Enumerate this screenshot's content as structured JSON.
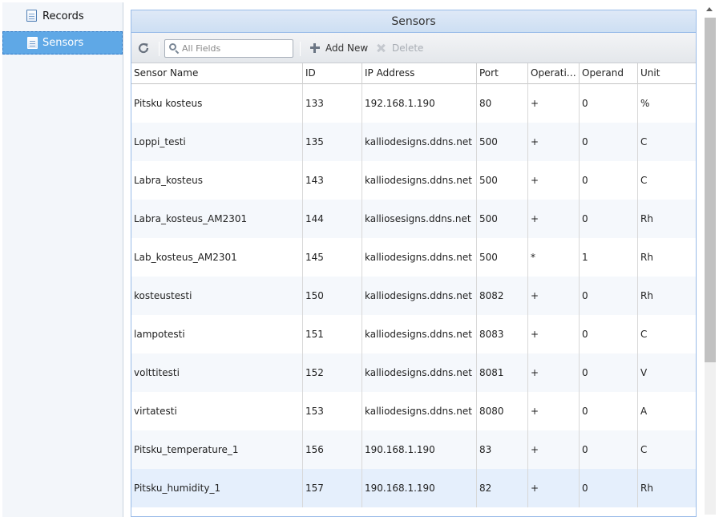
{
  "sidebar": {
    "items": [
      {
        "label": "Records",
        "icon": "document-icon",
        "selected": false
      },
      {
        "label": "Sensors",
        "icon": "document-icon",
        "selected": true
      }
    ]
  },
  "panel": {
    "title": "Sensors"
  },
  "toolbar": {
    "refresh_icon": "refresh-icon",
    "search_placeholder": "All Fields",
    "search_value": "",
    "add_label": "Add New",
    "delete_label": "Delete"
  },
  "grid": {
    "columns": [
      "Sensor Name",
      "ID",
      "IP Address",
      "Port",
      "Operati…",
      "Operand",
      "Unit"
    ],
    "rows": [
      {
        "name": "Pitsku kosteus",
        "id": "133",
        "ip": "192.168.1.190",
        "port": "80",
        "op": "+",
        "operand": "0",
        "unit": "%"
      },
      {
        "name": "Loppi_testi",
        "id": "135",
        "ip": "kalliodesigns.ddns.net",
        "port": "500",
        "op": "+",
        "operand": "0",
        "unit": "C"
      },
      {
        "name": "Labra_kosteus",
        "id": "143",
        "ip": "kalliodesigns.ddns.net",
        "port": "500",
        "op": "+",
        "operand": "0",
        "unit": "C"
      },
      {
        "name": "Labra_kosteus_AM2301",
        "id": "144",
        "ip": "kalliosesigns.ddns.net",
        "port": "500",
        "op": "+",
        "operand": "0",
        "unit": "Rh"
      },
      {
        "name": "Lab_kosteus_AM2301",
        "id": "145",
        "ip": "kalliodesigns.ddns.net",
        "port": "500",
        "op": "*",
        "operand": "1",
        "unit": "Rh"
      },
      {
        "name": "kosteustesti",
        "id": "150",
        "ip": "kalliodesigns.ddns.net",
        "port": "8082",
        "op": "+",
        "operand": "0",
        "unit": "Rh"
      },
      {
        "name": "lampotesti",
        "id": "151",
        "ip": "kalliodesigns.ddns.net",
        "port": "8083",
        "op": "+",
        "operand": "0",
        "unit": "C"
      },
      {
        "name": "volttitesti",
        "id": "152",
        "ip": "kalliodesigns.ddns.net",
        "port": "8081",
        "op": "+",
        "operand": "0",
        "unit": "V"
      },
      {
        "name": "virtatesti",
        "id": "153",
        "ip": "kalliodesigns.ddns.net",
        "port": "8080",
        "op": "+",
        "operand": "0",
        "unit": "A"
      },
      {
        "name": "Pitsku_temperature_1",
        "id": "156",
        "ip": "190.168.1.190",
        "port": "83",
        "op": "+",
        "operand": "0",
        "unit": "C"
      },
      {
        "name": "Pitsku_humidity_1",
        "id": "157",
        "ip": "190.168.1.190",
        "port": "82",
        "op": "+",
        "operand": "0",
        "unit": "Rh"
      }
    ]
  },
  "colors": {
    "accent": "#5fa8e6",
    "header_bg": "#cddff3",
    "row_alt": "#f5f8fc",
    "row_selected": "#e5effc"
  }
}
